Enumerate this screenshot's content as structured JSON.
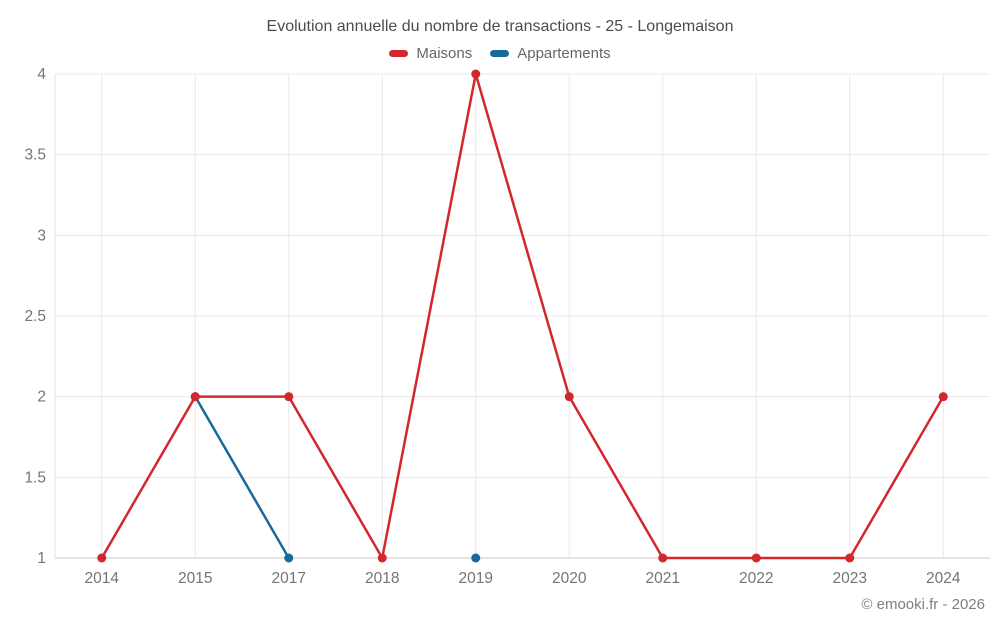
{
  "chart_data": {
    "type": "line",
    "title": "Evolution annuelle du nombre de transactions - 25 - Longemaison",
    "categories": [
      "2014",
      "2015",
      "2017",
      "2018",
      "2019",
      "2020",
      "2021",
      "2022",
      "2023",
      "2024"
    ],
    "series": [
      {
        "name": "Maisons",
        "color": "#d2282d",
        "values": [
          1,
          2,
          2,
          1,
          4,
          2,
          1,
          1,
          1,
          2
        ]
      },
      {
        "name": "Appartements",
        "color": "#19699e",
        "values": [
          null,
          2,
          1,
          null,
          1,
          null,
          null,
          null,
          null,
          null
        ]
      }
    ],
    "xlabel": "",
    "ylabel": "",
    "ylim": [
      1,
      4
    ],
    "yticks": [
      1,
      1.5,
      2,
      2.5,
      3,
      3.5,
      4
    ],
    "grid": true,
    "legend_position": "top"
  },
  "footer": {
    "copyright": "© emooki.fr - 2026"
  }
}
